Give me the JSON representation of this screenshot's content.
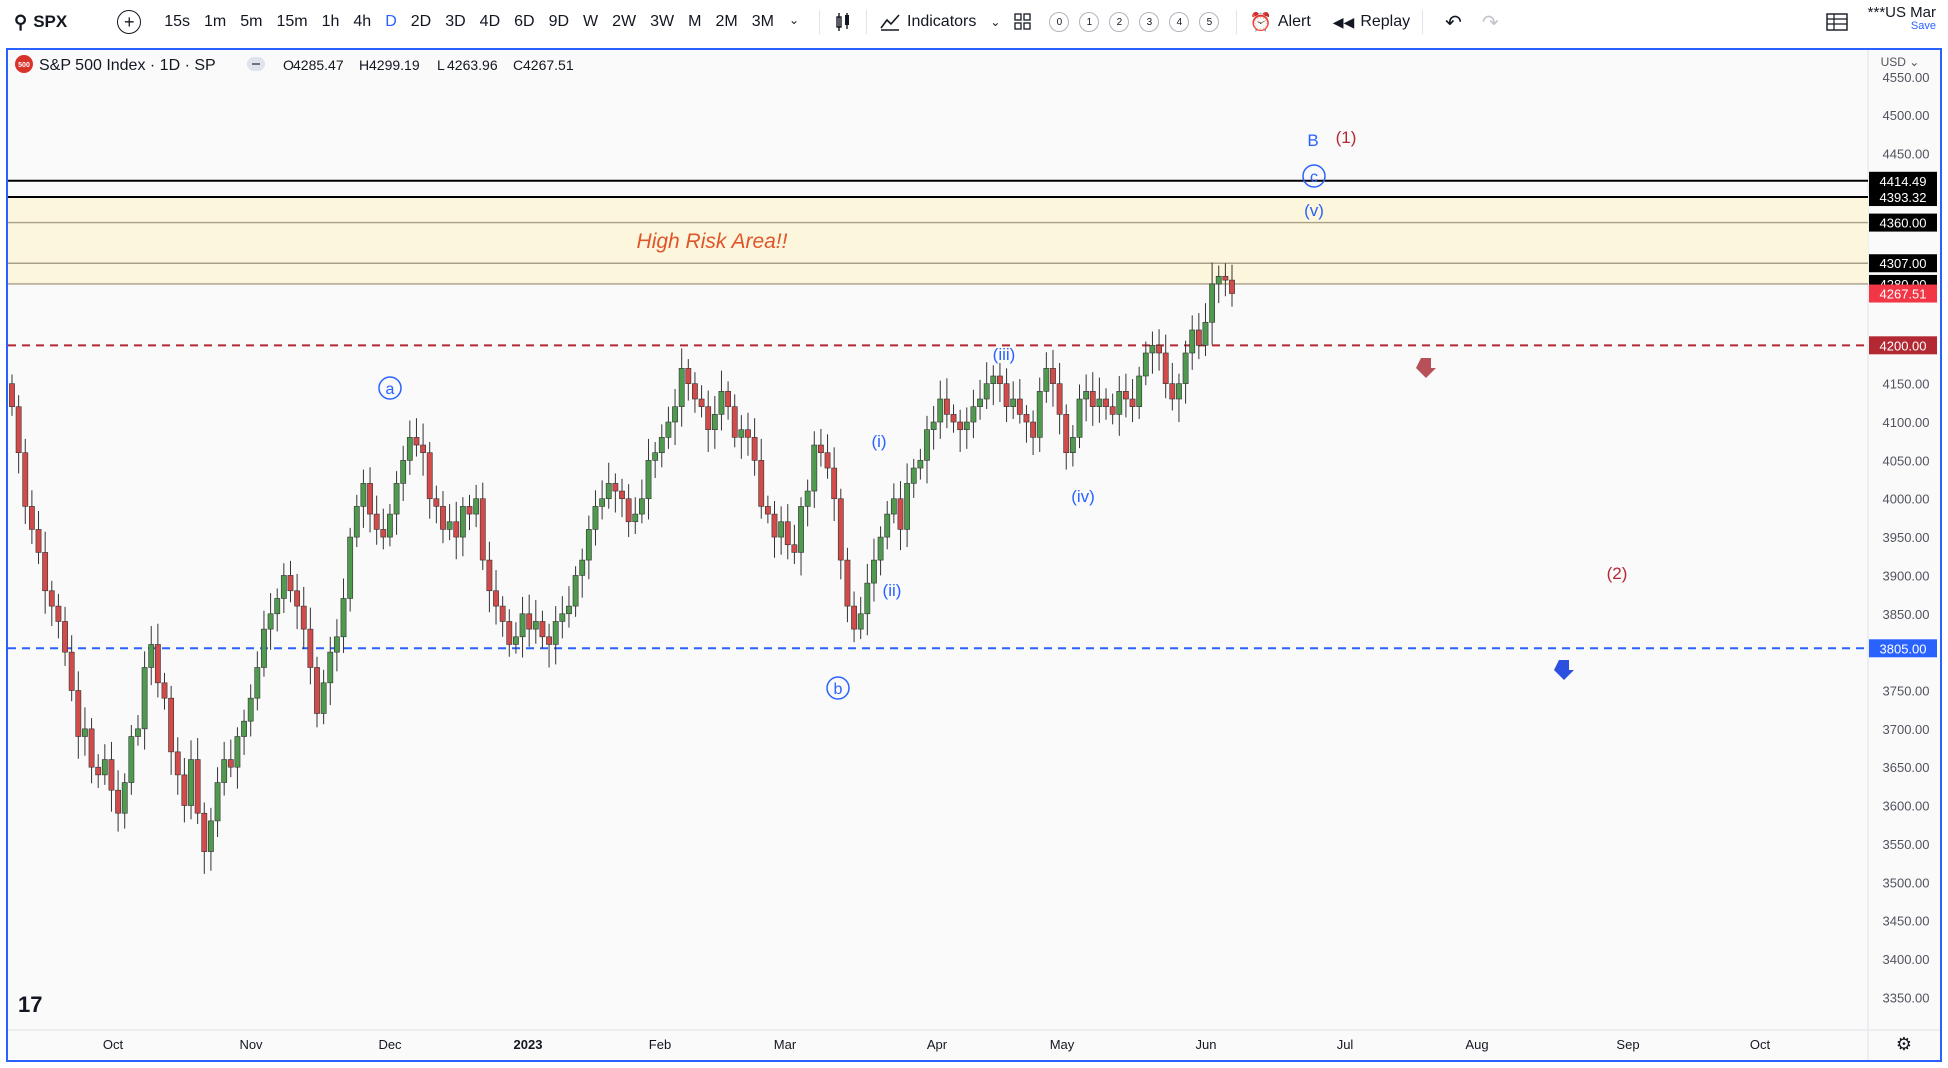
{
  "toolbar": {
    "symbol": "SPX",
    "intervals": [
      "15s",
      "1m",
      "5m",
      "15m",
      "1h",
      "4h",
      "D",
      "2D",
      "3D",
      "4D",
      "6D",
      "9D",
      "W",
      "2W",
      "3W",
      "M",
      "2M",
      "3M"
    ],
    "active_interval": "D",
    "indicators_label": "Indicators",
    "layout_nums": [
      "0",
      "1",
      "2",
      "3",
      "4",
      "5"
    ],
    "alert_label": "Alert",
    "replay_label": "Replay",
    "layout_name": "***US Mar",
    "save_label": "Save"
  },
  "legend": {
    "badge": "500",
    "title": "S&P 500 Index · 1D · SP",
    "o_label": "O",
    "o_value": "4285.47",
    "h_label": "H",
    "h_value": "4299.19",
    "l_label": "L",
    "l_value": "4263.96",
    "c_label": "C",
    "c_value": "4267.51"
  },
  "price_axis": {
    "currency": "USD",
    "ticks": [
      "4550.00",
      "4500.00",
      "4450.00",
      "4150.00",
      "4100.00",
      "4050.00",
      "4000.00",
      "3950.00",
      "3900.00",
      "3850.00",
      "3750.00",
      "3700.00",
      "3650.00",
      "3600.00",
      "3550.00",
      "3500.00",
      "3450.00",
      "3400.00",
      "3350.00"
    ],
    "tick_values": [
      4550,
      4500,
      4450,
      4150,
      4100,
      4050,
      4000,
      3950,
      3900,
      3850,
      3750,
      3700,
      3650,
      3600,
      3550,
      3500,
      3450,
      3400,
      3350
    ],
    "level_labels": [
      {
        "text": "4414.49",
        "value": 4414.49,
        "bg": "#000000"
      },
      {
        "text": "4393.32",
        "value": 4393.32,
        "bg": "#000000"
      },
      {
        "text": "4360.00",
        "value": 4360.0,
        "bg": "#000000"
      },
      {
        "text": "4307.00",
        "value": 4307.0,
        "bg": "#000000"
      },
      {
        "text": "4280.00",
        "value": 4280.0,
        "bg": "#000000"
      },
      {
        "text": "4267.51",
        "value": 4267.51,
        "bg": "#f23645"
      },
      {
        "text": "4200.00",
        "value": 4200.0,
        "bg": "#b22833"
      },
      {
        "text": "3805.00",
        "value": 3805.0,
        "bg": "#2962ff"
      }
    ]
  },
  "time_axis": {
    "labels": [
      "Oct",
      "Nov",
      "Dec",
      "2023",
      "Feb",
      "Mar",
      "Apr",
      "May",
      "Jun",
      "Jul",
      "Aug",
      "Sep",
      "Oct"
    ],
    "bold": "2023"
  },
  "annotations": {
    "high_risk": "High Risk Area!!",
    "wave_labels": [
      {
        "text": "a",
        "circled": true,
        "color": "#2962ff"
      },
      {
        "text": "b",
        "circled": true,
        "color": "#2962ff"
      },
      {
        "text": "c",
        "circled": true,
        "color": "#2962ff"
      },
      {
        "text": "B",
        "circled": false,
        "color": "#2962ff"
      },
      {
        "text": "(1)",
        "circled": false,
        "color": "#b22833"
      },
      {
        "text": "(2)",
        "circled": false,
        "color": "#b22833"
      },
      {
        "text": "(i)",
        "circled": false,
        "color": "#2962ff"
      },
      {
        "text": "(ii)",
        "circled": false,
        "color": "#2962ff"
      },
      {
        "text": "(iii)",
        "circled": false,
        "color": "#2962ff"
      },
      {
        "text": "(iv)",
        "circled": false,
        "color": "#2962ff"
      },
      {
        "text": "(v)",
        "circled": false,
        "color": "#2962ff"
      }
    ]
  },
  "colors": {
    "up": "#4f9a4f",
    "down": "#d14b4b",
    "zone": "#fcf6dc",
    "support": "#2962ff",
    "resistance": "#b22833"
  },
  "chart_data": {
    "type": "candlestick",
    "symbol": "S&P 500 Index",
    "ylim": [
      3310,
      4585
    ],
    "levels": {
      "black_lines": [
        4414.49,
        4393.32
      ],
      "zone_lines": [
        4360.0,
        4307.0,
        4280.0
      ],
      "red_dashed": 4200.0,
      "blue_dashed": 3805.0,
      "last_price": 4267.51
    },
    "closes": [
      4120,
      4060,
      3990,
      3960,
      3930,
      3880,
      3860,
      3840,
      3800,
      3750,
      3690,
      3700,
      3650,
      3640,
      3660,
      3620,
      3590,
      3630,
      3690,
      3700,
      3780,
      3810,
      3760,
      3740,
      3670,
      3640,
      3600,
      3660,
      3590,
      3540,
      3580,
      3630,
      3660,
      3650,
      3690,
      3710,
      3740,
      3780,
      3830,
      3850,
      3870,
      3900,
      3880,
      3860,
      3830,
      3780,
      3720,
      3760,
      3800,
      3820,
      3870,
      3950,
      3990,
      4020,
      3980,
      3960,
      3950,
      3980,
      4020,
      4050,
      4080,
      4070,
      4060,
      4000,
      3990,
      3960,
      3970,
      3950,
      3990,
      3980,
      4000,
      3920,
      3880,
      3860,
      3840,
      3810,
      3820,
      3850,
      3830,
      3840,
      3820,
      3810,
      3840,
      3850,
      3860,
      3900,
      3920,
      3960,
      3990,
      4000,
      4020,
      4010,
      4000,
      3970,
      3980,
      4000,
      4050,
      4060,
      4080,
      4100,
      4120,
      4170,
      4150,
      4130,
      4120,
      4090,
      4110,
      4140,
      4120,
      4080,
      4090,
      4080,
      4050,
      3990,
      3980,
      3950,
      3970,
      3940,
      3930,
      3990,
      4010,
      4070,
      4060,
      4040,
      4000,
      3920,
      3860,
      3830,
      3850,
      3890,
      3920,
      3950,
      3980,
      4000,
      3960,
      4020,
      4040,
      4050,
      4090,
      4100,
      4130,
      4110,
      4100,
      4090,
      4100,
      4120,
      4130,
      4150,
      4160,
      4150,
      4120,
      4130,
      4110,
      4100,
      4080,
      4140,
      4170,
      4150,
      4110,
      4060,
      4080,
      4130,
      4140,
      4120,
      4130,
      4120,
      4110,
      4140,
      4130,
      4120,
      4160,
      4190,
      4200,
      4190,
      4150,
      4130,
      4150,
      4190,
      4220,
      4200,
      4230,
      4280,
      4290,
      4285,
      4267.51
    ]
  }
}
